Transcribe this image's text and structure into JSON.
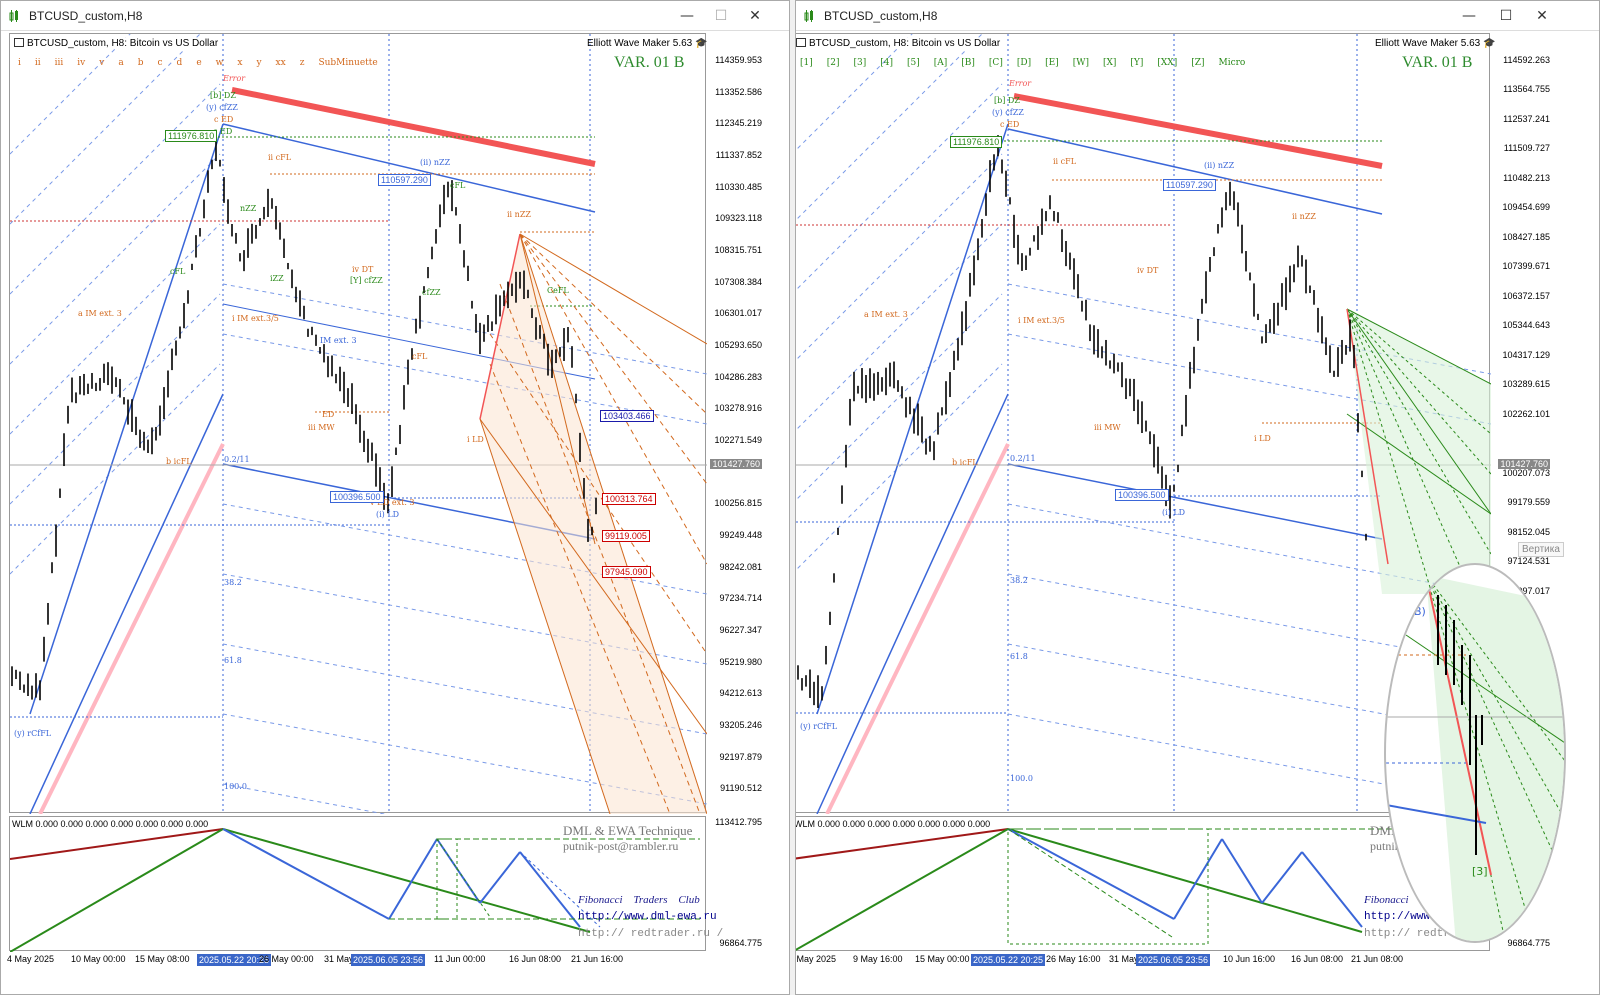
{
  "left": {
    "window_title": "BTCUSD_custom,H8",
    "symbol_header": "BTCUSD_custom, H8:  Bitcoin vs US Dollar",
    "indicator": "Elliott Wave Maker 5.63",
    "variant": "VAR. 01 B",
    "wave_degrees": [
      "i",
      "ii",
      "iii",
      "iv",
      "v",
      "a",
      "b",
      "c",
      "d",
      "e",
      "w",
      "x",
      "y",
      "xx",
      "z",
      "SubMinuette"
    ],
    "prices": [
      "114359.953",
      "113352.586",
      "112345.219",
      "111337.852",
      "110330.485",
      "109323.118",
      "108315.751",
      "107308.384",
      "106301.017",
      "105293.650",
      "104286.283",
      "103278.916",
      "102271.549",
      "101427.760",
      "100256.815",
      "99249.448",
      "98242.081",
      "97234.714",
      "96227.347",
      "95219.980",
      "94212.613",
      "93205.246",
      "92197.879",
      "91190.512"
    ],
    "sub_prices": [
      "113412.795",
      "96864.775"
    ],
    "dates": [
      "4 May 2025",
      "10 May 00:00",
      "15 May 08:00",
      "2025.05.22 20:25",
      "26 May 00:00",
      "31 May",
      "2025.06.05 23:56",
      "11 Jun 00:00",
      "16 Jun 08:00",
      "21 Jun 16:00"
    ],
    "price_boxes": [
      "111976.810",
      "110597.290",
      "100396.500",
      "100313.764",
      "99119.005",
      "97945.090",
      "103403.466"
    ],
    "wave_labels": [
      "Error",
      "[b] DZ",
      "(y) cfZZ",
      "c ED",
      "ii cFL",
      "(ii) nZZ",
      "ii nZZ",
      "iv DT",
      "[Y] cfZZ",
      "a IM ext. 3",
      "i IM ext.3/5",
      "b icFL",
      "iii MW",
      "i LD",
      "(i) LD",
      "v ED ext. 3",
      "(y) rCfFL",
      "cFL",
      "cfZZ",
      "nZZ",
      "iZZ",
      "ED",
      "cFL",
      "cFL",
      "CeFL",
      "IM ext. 3",
      "c ED"
    ],
    "fib_levels": [
      "0.2/11",
      "38.2",
      "61.8",
      "100.0"
    ],
    "wlm_text": "WLM 0.000 0.000 0.000 0.000 0.000 0.000 0.000",
    "dml_text": "DML & EWA Technique",
    "email": "putnik-post@rambler.ru",
    "fib_club": "Fibonacci   Traders   Club",
    "url1": "http://www.dml-ewa.ru",
    "url2": "http:// redtrader.ru /"
  },
  "right": {
    "window_title": "BTCUSD_custom,H8",
    "symbol_header": "BTCUSD_custom, H8:  Bitcoin vs US Dollar",
    "indicator": "Elliott Wave Maker 5.63",
    "variant": "VAR. 01 B",
    "wave_degrees": [
      "[1]",
      "[2]",
      "[3]",
      "[4]",
      "[5]",
      "[A]",
      "[B]",
      "[C]",
      "[D]",
      "[E]",
      "[W]",
      "[X]",
      "[Y]",
      "[XX]",
      "[Z]",
      "Micro"
    ],
    "prices": [
      "114592.263",
      "113564.755",
      "112537.241",
      "111509.727",
      "110482.213",
      "109454.699",
      "108427.185",
      "107399.671",
      "106372.157",
      "105344.643",
      "104317.129",
      "103289.615",
      "102262.101",
      "101427.760",
      "100207.073",
      "99179.559",
      "98152.045",
      "97124.531",
      "96097.017"
    ],
    "sub_prices": [
      "96864.775"
    ],
    "dates": [
      "4 May 2025",
      "9 May 16:00",
      "15 May 00:00",
      "2025.05.22 20:25",
      "26 May 16:00",
      "31 May 08:00",
      "2025.06.05 23:56",
      "10 Jun 16:00",
      "16 Jun 08:00",
      "21 Jun 08:00"
    ],
    "price_boxes": [
      "111976.810",
      "110597.290",
      "100396.500"
    ],
    "tooltip": "Вертика",
    "wlm_text": "WLM 0.000 0.000 0.000 0.000 0.000 0.000 0.000",
    "dml_text": "DML & EWA",
    "email": "putnik",
    "fib_club": "Fibonacci",
    "url1": "http://www",
    "url2": "http:// redtr"
  },
  "window_controls": {
    "minimize": "—",
    "maximize": "☐",
    "close": "✕"
  },
  "colors": {
    "up_line": "#3a66d8",
    "red_line": "#f25555",
    "pink_line": "#ffb6c1",
    "green_text": "#2e8b2e",
    "orange_text": "#d2691e",
    "blue_text": "#3a66d8",
    "wlm_green": "#2a8a1a",
    "wlm_red": "#a01818"
  }
}
